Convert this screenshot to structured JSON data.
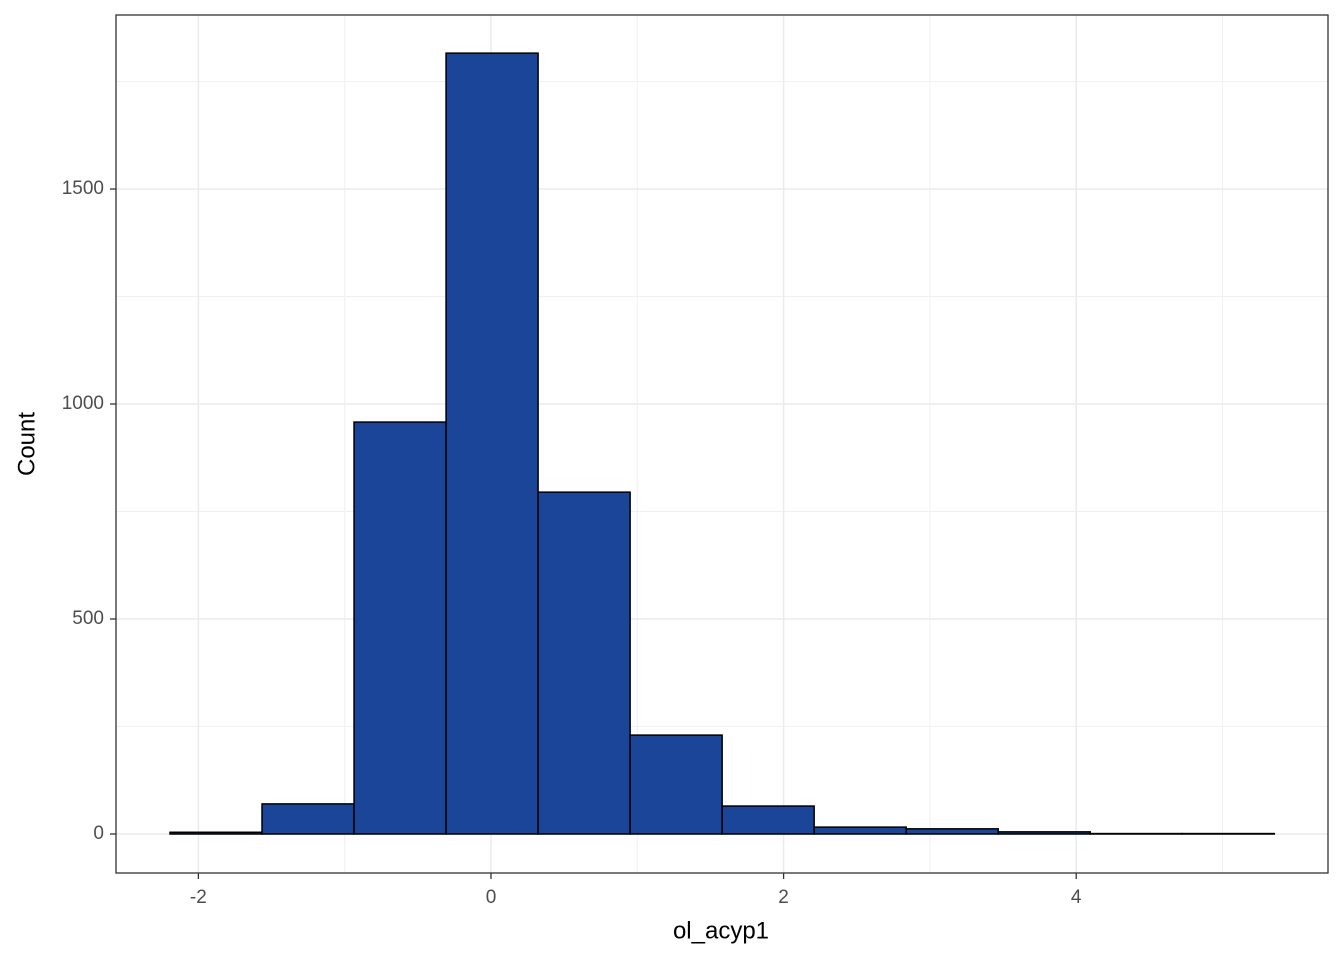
{
  "chart_data": {
    "type": "histogram",
    "x_label": "ol_acyp1",
    "y_label": "Count",
    "bins": [
      -2.194,
      -1.565,
      -0.936,
      -0.307,
      0.322,
      0.951,
      1.58,
      2.209,
      2.838,
      3.467,
      4.096,
      4.725,
      5.354
    ],
    "values": [
      4,
      70,
      958,
      1816,
      795,
      230,
      65,
      16,
      12,
      5,
      1,
      1
    ],
    "color": "#1a4599",
    "edge_color": "#000000",
    "xlim": [
      -2.563,
      5.721
    ],
    "ylim": [
      -90.7,
      1904.7
    ],
    "xticks": [
      -2,
      0,
      2,
      4
    ],
    "yticks": [
      0,
      500,
      1000,
      1500
    ],
    "grid": true
  }
}
